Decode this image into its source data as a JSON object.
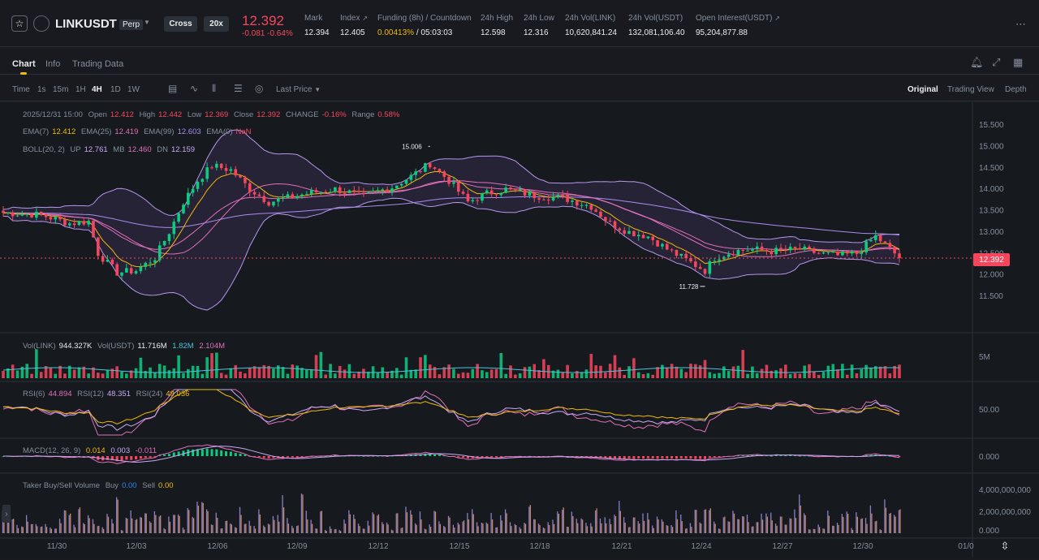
{
  "header": {
    "symbol": "LINKUSDT",
    "badge": "Perp",
    "margin_mode": "Cross",
    "leverage": "20x",
    "last_price": "12.392",
    "change": "-0.081",
    "change_pct": "-0.64%",
    "stats": [
      {
        "label": "Mark",
        "value": "12.394"
      },
      {
        "label": "Index",
        "value": "12.405"
      },
      {
        "label": "Funding (8h) / Countdown",
        "value": "0.00413%",
        "value2": "/ 05:03:03"
      },
      {
        "label": "24h High",
        "value": "12.598"
      },
      {
        "label": "24h Low",
        "value": "12.316"
      },
      {
        "label": "24h Vol(LINK)",
        "value": "10,620,841.24"
      },
      {
        "label": "24h Vol(USDT)",
        "value": "132,081,106.40"
      },
      {
        "label": "Open Interest(USDT)",
        "value": "95,204,877.88"
      }
    ]
  },
  "tabs": [
    "Chart",
    "Info",
    "Trading Data"
  ],
  "toolbar": {
    "intervals": [
      "Time",
      "1s",
      "15m",
      "1H",
      "4H",
      "1D",
      "1W"
    ],
    "active_interval": "4H",
    "price_type": "Last Price",
    "views": [
      "Original",
      "Trading View",
      "Depth"
    ],
    "active_view": "Original"
  },
  "legend": {
    "ohlc": {
      "date": "2025/12/31 15:00",
      "open_label": "Open",
      "open": "12.412",
      "high_label": "High",
      "high": "12.442",
      "low_label": "Low",
      "low": "12.369",
      "close_label": "Close",
      "close": "12.392",
      "change_label": "CHANGE",
      "change": "-0.16%",
      "range_label": "Range",
      "range": "0.58%"
    },
    "ema": [
      {
        "label": "EMA(7)",
        "value": "12.412"
      },
      {
        "label": "EMA(25)",
        "value": "12.419"
      },
      {
        "label": "EMA(99)",
        "value": "12.603"
      },
      {
        "label": "EMA(0)",
        "value": "NaN"
      }
    ],
    "boll": {
      "label": "BOLL(20, 2)",
      "up_label": "UP",
      "up": "12.761",
      "mb_label": "MB",
      "mb": "12.460",
      "dn_label": "DN",
      "dn": "12.159"
    },
    "vol": {
      "label1": "Vol(LINK)",
      "v1": "944.327K",
      "label2": "Vol(USDT)",
      "v2": "11.716M",
      "v3": "1.82M",
      "v4": "2.104M"
    },
    "rsi": [
      {
        "label": "RSI(6)",
        "value": "44.894"
      },
      {
        "label": "RSI(12)",
        "value": "48.351"
      },
      {
        "label": "RSI(24)",
        "value": "49.036"
      }
    ],
    "macd": {
      "label": "MACD(12, 26, 9)",
      "v1": "0.014",
      "v2": "0.003",
      "v3": "-0.011"
    },
    "taker": {
      "label": "Taker Buy/Sell Volume",
      "buy_label": "Buy",
      "buy": "0.00",
      "sell_label": "Sell",
      "sell": "0.00"
    }
  },
  "price_axis": [
    "15.500",
    "15.000",
    "14.500",
    "14.000",
    "13.500",
    "13.000",
    "12.500",
    "12.000",
    "11.500"
  ],
  "current_price_tag": "12.392",
  "annotations": {
    "high": "15.006",
    "low": "11.728"
  },
  "vol_axis": [
    "5M"
  ],
  "rsi_axis": [
    "50.00"
  ],
  "macd_axis": [
    "0.000"
  ],
  "taker_axis": [
    "4,000,000,000",
    "2,000,000,000",
    "0.000"
  ],
  "date_axis": [
    "11/30",
    "12/03",
    "12/06",
    "12/09",
    "12/12",
    "12/15",
    "12/18",
    "12/21",
    "12/24",
    "12/27",
    "12/30",
    "01/0"
  ],
  "colors": {
    "up": "#0ecb81",
    "down": "#f6465d",
    "bg": "#161a1e",
    "accent": "#f0b90b"
  }
}
